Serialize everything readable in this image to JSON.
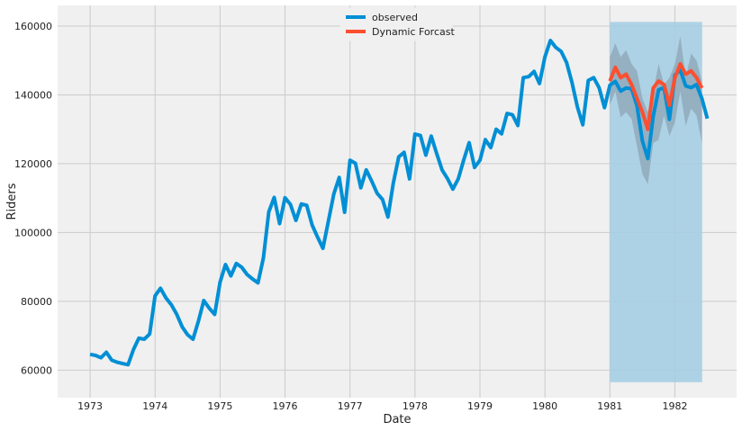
{
  "chart_data": {
    "type": "line",
    "title": "",
    "xlabel": "Date",
    "ylabel": "Riders",
    "xlim": [
      1972.5,
      1982.95
    ],
    "ylim": [
      52000,
      166000
    ],
    "grid": true,
    "legend_placement": "top-center",
    "x_ticks": [
      1973,
      1974,
      1975,
      1976,
      1977,
      1978,
      1979,
      1980,
      1981,
      1982
    ],
    "y_ticks": [
      60000,
      80000,
      100000,
      120000,
      140000,
      160000
    ],
    "colors": {
      "observed": "#008fd5",
      "forecast": "#fc4f30",
      "forecast_window": "#a6cee3",
      "confidence_band": "#7f94a4",
      "plot_background": "#f0f0f0",
      "grid": "#cbcbcb"
    },
    "forecast_window": {
      "x_start": 1981.0,
      "x_end": 1982.42,
      "y_min": 56500,
      "y_max": 161200
    },
    "series": [
      {
        "name": "observed",
        "start": 1973.0,
        "step_months": 1,
        "values": [
          64600,
          64300,
          63600,
          65200,
          62900,
          62300,
          61900,
          61600,
          66000,
          69300,
          69000,
          70500,
          81600,
          83800,
          81000,
          79000,
          76200,
          72600,
          70300,
          69000,
          74200,
          80200,
          78000,
          76200,
          85600,
          90700,
          87400,
          91000,
          89900,
          87800,
          86500,
          85400,
          92600,
          106000,
          110200,
          102600,
          110100,
          108200,
          103500,
          108300,
          107900,
          102200,
          98700,
          95400,
          103200,
          111200,
          116000,
          105900,
          121000,
          120100,
          113000,
          118200,
          115000,
          111400,
          109600,
          104500,
          114400,
          122000,
          123300,
          115600,
          128600,
          128200,
          122500,
          128000,
          123000,
          118200,
          115700,
          112600,
          115600,
          121100,
          126100,
          118900,
          121000,
          127000,
          124700,
          130000,
          128700,
          134600,
          134200,
          131100,
          145000,
          145300,
          146800,
          143300,
          151000,
          155800,
          153800,
          152600,
          149400,
          143600,
          136500,
          131300,
          144200,
          145000,
          142100,
          136300,
          142800,
          143900,
          141100,
          142000,
          141800,
          136800,
          126600,
          121500,
          133800,
          141500,
          142100,
          132900,
          145800,
          147200,
          142600,
          142100,
          143000,
          138900,
          133100
        ]
      },
      {
        "name": "Dynamic Forcast",
        "start": 1981.0,
        "step_months": 1,
        "values": [
          144000,
          148000,
          145000,
          146000,
          143000,
          139000,
          135000,
          130000,
          142000,
          144000,
          143000,
          137000,
          145000,
          149000,
          146000,
          147000,
          145000,
          142000
        ],
        "lower": [
          137000,
          141000,
          133500,
          135000,
          133000,
          125000,
          117000,
          114000,
          126000,
          127000,
          134000,
          128000,
          132000,
          141000,
          131000,
          136000,
          134000,
          126000
        ],
        "upper": [
          151000,
          155000,
          151000,
          153000,
          149000,
          147000,
          139000,
          135000,
          141000,
          149000,
          143000,
          145000,
          149000,
          157000,
          145000,
          152000,
          150000,
          144000
        ]
      }
    ]
  }
}
